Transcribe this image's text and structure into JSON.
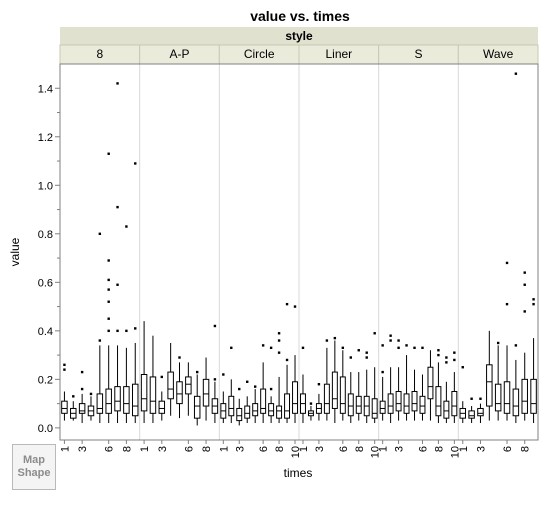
{
  "map_shape_button": {
    "line1": "Map",
    "line2": "Shape"
  },
  "chart_data": {
    "type": "boxplot",
    "title": "value vs. times",
    "group_header": "style",
    "xlabel": "times",
    "ylabel": "value",
    "ylim": [
      -0.05,
      1.5
    ],
    "yticks": [
      0.0,
      0.2,
      0.4,
      0.6,
      0.8,
      1.0,
      1.2,
      1.4
    ],
    "ytick_labels": [
      "0.0",
      "0.2",
      "0.4",
      "0.6",
      "0.8",
      "1.0",
      "1.2",
      "1.4"
    ],
    "xtick_labels": [
      "1",
      "3",
      "6",
      "8",
      "10"
    ],
    "panels": [
      {
        "name": "8",
        "boxes": [
          {
            "times": 1,
            "min": 0.03,
            "q1": 0.06,
            "median": 0.08,
            "q3": 0.11,
            "max": 0.15,
            "outliers": [
              0.24,
              0.26
            ]
          },
          {
            "times": 2,
            "min": 0.03,
            "q1": 0.04,
            "median": 0.06,
            "q3": 0.08,
            "max": 0.11,
            "outliers": [
              0.13
            ]
          },
          {
            "times": 3,
            "min": 0.02,
            "q1": 0.06,
            "median": 0.07,
            "q3": 0.1,
            "max": 0.14,
            "outliers": [
              0.16,
              0.23
            ]
          },
          {
            "times": 4,
            "min": 0.03,
            "q1": 0.05,
            "median": 0.07,
            "q3": 0.09,
            "max": 0.13,
            "outliers": [
              0.14
            ]
          },
          {
            "times": 5,
            "min": 0.02,
            "q1": 0.06,
            "median": 0.08,
            "q3": 0.14,
            "max": 0.34,
            "outliers": [
              0.36,
              0.8
            ]
          },
          {
            "times": 6,
            "min": 0.02,
            "q1": 0.06,
            "median": 0.1,
            "q3": 0.16,
            "max": 0.34,
            "outliers": [
              0.4,
              0.45,
              0.52,
              0.57,
              0.61,
              0.69,
              1.13
            ]
          },
          {
            "times": 7,
            "min": 0.02,
            "q1": 0.07,
            "median": 0.11,
            "q3": 0.17,
            "max": 0.34,
            "outliers": [
              0.4,
              0.59,
              0.91,
              1.42
            ]
          },
          {
            "times": 8,
            "min": 0.02,
            "q1": 0.06,
            "median": 0.1,
            "q3": 0.17,
            "max": 0.33,
            "outliers": [
              0.4,
              0.83
            ]
          },
          {
            "times": 9,
            "min": 0.02,
            "q1": 0.05,
            "median": 0.09,
            "q3": 0.18,
            "max": 0.35,
            "outliers": [
              0.41,
              1.09
            ]
          }
        ]
      },
      {
        "name": "A-P",
        "boxes": [
          {
            "times": 1,
            "min": 0.02,
            "q1": 0.07,
            "median": 0.12,
            "q3": 0.22,
            "max": 0.44,
            "outliers": []
          },
          {
            "times": 2,
            "min": 0.02,
            "q1": 0.06,
            "median": 0.11,
            "q3": 0.21,
            "max": 0.38,
            "outliers": []
          },
          {
            "times": 3,
            "min": 0.03,
            "q1": 0.06,
            "median": 0.08,
            "q3": 0.11,
            "max": 0.15,
            "outliers": [
              0.21
            ]
          },
          {
            "times": 4,
            "min": 0.05,
            "q1": 0.12,
            "median": 0.16,
            "q3": 0.23,
            "max": 0.35,
            "outliers": []
          },
          {
            "times": 5,
            "min": 0.04,
            "q1": 0.1,
            "median": 0.14,
            "q3": 0.19,
            "max": 0.27,
            "outliers": [
              0.29
            ]
          },
          {
            "times": 6,
            "min": 0.05,
            "q1": 0.14,
            "median": 0.18,
            "q3": 0.21,
            "max": 0.27,
            "outliers": []
          },
          {
            "times": 7,
            "min": 0.01,
            "q1": 0.04,
            "median": 0.09,
            "q3": 0.13,
            "max": 0.22,
            "outliers": [
              0.23
            ]
          },
          {
            "times": 8,
            "min": 0.03,
            "q1": 0.09,
            "median": 0.14,
            "q3": 0.2,
            "max": 0.29,
            "outliers": []
          },
          {
            "times": 9,
            "min": 0.02,
            "q1": 0.06,
            "median": 0.09,
            "q3": 0.12,
            "max": 0.19,
            "outliers": [
              0.2,
              0.42
            ]
          }
        ]
      },
      {
        "name": "Circle",
        "boxes": [
          {
            "times": 1,
            "min": 0.02,
            "q1": 0.04,
            "median": 0.07,
            "q3": 0.1,
            "max": 0.15,
            "outliers": [
              0.22
            ]
          },
          {
            "times": 2,
            "min": 0.02,
            "q1": 0.05,
            "median": 0.08,
            "q3": 0.13,
            "max": 0.2,
            "outliers": [
              0.33
            ]
          },
          {
            "times": 3,
            "min": 0.01,
            "q1": 0.03,
            "median": 0.05,
            "q3": 0.08,
            "max": 0.12,
            "outliers": [
              0.16
            ]
          },
          {
            "times": 4,
            "min": 0.02,
            "q1": 0.04,
            "median": 0.06,
            "q3": 0.09,
            "max": 0.13,
            "outliers": [
              0.19
            ]
          },
          {
            "times": 5,
            "min": 0.02,
            "q1": 0.05,
            "median": 0.07,
            "q3": 0.1,
            "max": 0.16,
            "outliers": [
              0.17
            ]
          },
          {
            "times": 6,
            "min": 0.02,
            "q1": 0.06,
            "median": 0.08,
            "q3": 0.16,
            "max": 0.27,
            "outliers": [
              0.34
            ]
          },
          {
            "times": 7,
            "min": 0.02,
            "q1": 0.05,
            "median": 0.07,
            "q3": 0.1,
            "max": 0.13,
            "outliers": [
              0.16,
              0.33
            ]
          },
          {
            "times": 8,
            "min": 0.02,
            "q1": 0.04,
            "median": 0.07,
            "q3": 0.09,
            "max": 0.21,
            "outliers": [
              0.31,
              0.36,
              0.39
            ]
          },
          {
            "times": 9,
            "min": 0.02,
            "q1": 0.04,
            "median": 0.07,
            "q3": 0.14,
            "max": 0.26,
            "outliers": [
              0.28,
              0.51
            ]
          },
          {
            "times": 10,
            "min": 0.02,
            "q1": 0.06,
            "median": 0.1,
            "q3": 0.19,
            "max": 0.3,
            "outliers": [
              0.5
            ]
          }
        ]
      },
      {
        "name": "Liner",
        "boxes": [
          {
            "times": 1,
            "min": 0.02,
            "q1": 0.06,
            "median": 0.1,
            "q3": 0.14,
            "max": 0.22,
            "outliers": [
              0.33
            ]
          },
          {
            "times": 2,
            "min": 0.03,
            "q1": 0.05,
            "median": 0.06,
            "q3": 0.07,
            "max": 0.09,
            "outliers": [
              0.1
            ]
          },
          {
            "times": 3,
            "min": 0.03,
            "q1": 0.06,
            "median": 0.08,
            "q3": 0.1,
            "max": 0.14,
            "outliers": [
              0.18
            ]
          },
          {
            "times": 4,
            "min": 0.03,
            "q1": 0.06,
            "median": 0.1,
            "q3": 0.18,
            "max": 0.33,
            "outliers": [
              0.36
            ]
          },
          {
            "times": 5,
            "min": 0.02,
            "q1": 0.08,
            "median": 0.12,
            "q3": 0.23,
            "max": 0.36,
            "outliers": [
              0.37
            ]
          },
          {
            "times": 6,
            "min": 0.03,
            "q1": 0.06,
            "median": 0.1,
            "q3": 0.21,
            "max": 0.32,
            "outliers": [
              0.33
            ]
          },
          {
            "times": 7,
            "min": 0.02,
            "q1": 0.05,
            "median": 0.09,
            "q3": 0.14,
            "max": 0.23,
            "outliers": [
              0.29
            ]
          },
          {
            "times": 8,
            "min": 0.03,
            "q1": 0.06,
            "median": 0.09,
            "q3": 0.13,
            "max": 0.23,
            "outliers": [
              0.32
            ]
          },
          {
            "times": 9,
            "min": 0.02,
            "q1": 0.05,
            "median": 0.09,
            "q3": 0.13,
            "max": 0.24,
            "outliers": [
              0.29,
              0.31
            ]
          },
          {
            "times": 10,
            "min": 0.02,
            "q1": 0.04,
            "median": 0.06,
            "q3": 0.12,
            "max": 0.25,
            "outliers": [
              0.39
            ]
          }
        ]
      },
      {
        "name": "S",
        "boxes": [
          {
            "times": 1,
            "min": 0.03,
            "q1": 0.06,
            "median": 0.08,
            "q3": 0.11,
            "max": 0.21,
            "outliers": [
              0.23,
              0.34
            ]
          },
          {
            "times": 2,
            "min": 0.02,
            "q1": 0.06,
            "median": 0.09,
            "q3": 0.14,
            "max": 0.25,
            "outliers": [
              0.36,
              0.38
            ]
          },
          {
            "times": 3,
            "min": 0.03,
            "q1": 0.07,
            "median": 0.1,
            "q3": 0.15,
            "max": 0.25,
            "outliers": [
              0.33,
              0.36
            ]
          },
          {
            "times": 4,
            "min": 0.03,
            "q1": 0.06,
            "median": 0.09,
            "q3": 0.14,
            "max": 0.3,
            "outliers": [
              0.34
            ]
          },
          {
            "times": 5,
            "min": 0.03,
            "q1": 0.07,
            "median": 0.1,
            "q3": 0.15,
            "max": 0.24,
            "outliers": [
              0.33
            ]
          },
          {
            "times": 6,
            "min": 0.03,
            "q1": 0.06,
            "median": 0.09,
            "q3": 0.13,
            "max": 0.22,
            "outliers": [
              0.33
            ]
          },
          {
            "times": 7,
            "min": 0.03,
            "q1": 0.12,
            "median": 0.17,
            "q3": 0.25,
            "max": 0.32,
            "outliers": []
          },
          {
            "times": 8,
            "min": 0.02,
            "q1": 0.05,
            "median": 0.09,
            "q3": 0.17,
            "max": 0.27,
            "outliers": [
              0.3,
              0.32
            ]
          },
          {
            "times": 9,
            "min": 0.02,
            "q1": 0.04,
            "median": 0.07,
            "q3": 0.11,
            "max": 0.19,
            "outliers": [
              0.27,
              0.29
            ]
          },
          {
            "times": 10,
            "min": 0.02,
            "q1": 0.05,
            "median": 0.09,
            "q3": 0.15,
            "max": 0.23,
            "outliers": [
              0.28,
              0.31
            ]
          }
        ]
      },
      {
        "name": "Wave",
        "boxes": [
          {
            "times": 1,
            "min": 0.02,
            "q1": 0.04,
            "median": 0.06,
            "q3": 0.08,
            "max": 0.11,
            "outliers": [
              0.25
            ]
          },
          {
            "times": 2,
            "min": 0.02,
            "q1": 0.04,
            "median": 0.05,
            "q3": 0.07,
            "max": 0.09,
            "outliers": [
              0.12
            ]
          },
          {
            "times": 3,
            "min": 0.02,
            "q1": 0.05,
            "median": 0.06,
            "q3": 0.08,
            "max": 0.1,
            "outliers": [
              0.12
            ]
          },
          {
            "times": 4,
            "min": 0.03,
            "q1": 0.09,
            "median": 0.19,
            "q3": 0.26,
            "max": 0.4,
            "outliers": []
          },
          {
            "times": 5,
            "min": 0.03,
            "q1": 0.07,
            "median": 0.1,
            "q3": 0.18,
            "max": 0.34,
            "outliers": [
              0.35
            ]
          },
          {
            "times": 6,
            "min": 0.03,
            "q1": 0.06,
            "median": 0.1,
            "q3": 0.19,
            "max": 0.34,
            "outliers": [
              0.51,
              0.68
            ]
          },
          {
            "times": 7,
            "min": 0.02,
            "q1": 0.05,
            "median": 0.09,
            "q3": 0.16,
            "max": 0.28,
            "outliers": [
              0.34,
              1.46
            ]
          },
          {
            "times": 8,
            "min": 0.03,
            "q1": 0.06,
            "median": 0.11,
            "q3": 0.2,
            "max": 0.31,
            "outliers": [
              0.48,
              0.59,
              0.64
            ]
          },
          {
            "times": 9,
            "min": 0.02,
            "q1": 0.06,
            "median": 0.1,
            "q3": 0.2,
            "max": 0.37,
            "outliers": [
              0.51,
              0.53
            ]
          }
        ]
      }
    ]
  }
}
